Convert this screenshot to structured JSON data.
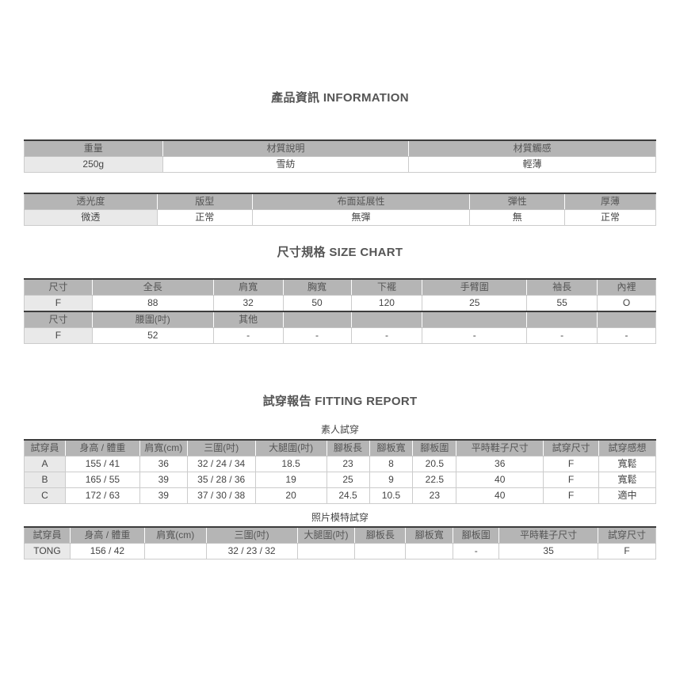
{
  "colors": {
    "header_bg": "#b5b5b5",
    "first_col_bg": "#e9e9e9",
    "border_light": "#cccccc",
    "border_dark": "#3c3c3c",
    "title_text": "#555555",
    "cell_text": "#444444"
  },
  "info": {
    "title": "產品資訊 INFORMATION",
    "material_table": {
      "rows": [
        {
          "type": "header",
          "cells": [
            "重量",
            "材質說明",
            "材質觸感"
          ]
        },
        {
          "type": "data",
          "cells": [
            "250g",
            "雪紡",
            "輕薄"
          ]
        }
      ]
    },
    "fabric_table": {
      "rows": [
        {
          "type": "header",
          "cells": [
            "透光度",
            "版型",
            "布面延展性",
            "彈性",
            "厚薄"
          ]
        },
        {
          "type": "data",
          "cells": [
            "微透",
            "正常",
            "無彈",
            "無",
            "正常"
          ]
        }
      ]
    }
  },
  "size_chart": {
    "title": "尺寸規格 SIZE CHART",
    "table": {
      "rows": [
        {
          "type": "header",
          "cells": [
            "尺寸",
            "全長",
            "肩寬",
            "胸寬",
            "下襬",
            "手臂圍",
            "袖長",
            "內裡"
          ]
        },
        {
          "type": "data",
          "cells": [
            "F",
            "88",
            "32",
            "50",
            "120",
            "25",
            "55",
            "O"
          ]
        },
        {
          "type": "header",
          "cells": [
            "尺寸",
            "腰圍(吋)",
            "其他",
            "",
            "",
            "",
            "",
            ""
          ]
        },
        {
          "type": "data",
          "cells": [
            "F",
            "52",
            "-",
            "-",
            "-",
            "-",
            "-",
            "-"
          ]
        }
      ]
    }
  },
  "fitting": {
    "title": "試穿報告 FITTING REPORT",
    "normal": {
      "subtitle": "素人試穿",
      "table": {
        "rows": [
          {
            "type": "header",
            "cells": [
              "試穿員",
              "身高 / 體重",
              "肩寬(cm)",
              "三圍(吋)",
              "大腿圍(吋)",
              "腳板長",
              "腳板寬",
              "腳板圍",
              "平時鞋子尺寸",
              "試穿尺寸",
              "試穿感想"
            ]
          },
          {
            "type": "data",
            "cells": [
              "A",
              "155 / 41",
              "36",
              "32 / 24 / 34",
              "18.5",
              "23",
              "8",
              "20.5",
              "36",
              "F",
              "寬鬆"
            ]
          },
          {
            "type": "data",
            "cells": [
              "B",
              "165 / 55",
              "39",
              "35 / 28 / 36",
              "19",
              "25",
              "9",
              "22.5",
              "40",
              "F",
              "寬鬆"
            ]
          },
          {
            "type": "data",
            "cells": [
              "C",
              "172 / 63",
              "39",
              "37 / 30 / 38",
              "20",
              "24.5",
              "10.5",
              "23",
              "40",
              "F",
              "適中"
            ]
          }
        ]
      }
    },
    "model": {
      "subtitle": "照片模特試穿",
      "table": {
        "rows": [
          {
            "type": "header",
            "cells": [
              "試穿員",
              "身高 / 體重",
              "肩寬(cm)",
              "三圍(吋)",
              "大腿圍(吋)",
              "腳板長",
              "腳板寬",
              "腳板圍",
              "平時鞋子尺寸",
              "試穿尺寸"
            ]
          },
          {
            "type": "data",
            "cells": [
              "TONG",
              "156 / 42",
              "",
              "32 / 23 / 32",
              "",
              "",
              "",
              "-",
              "35",
              "F"
            ]
          }
        ]
      }
    }
  }
}
